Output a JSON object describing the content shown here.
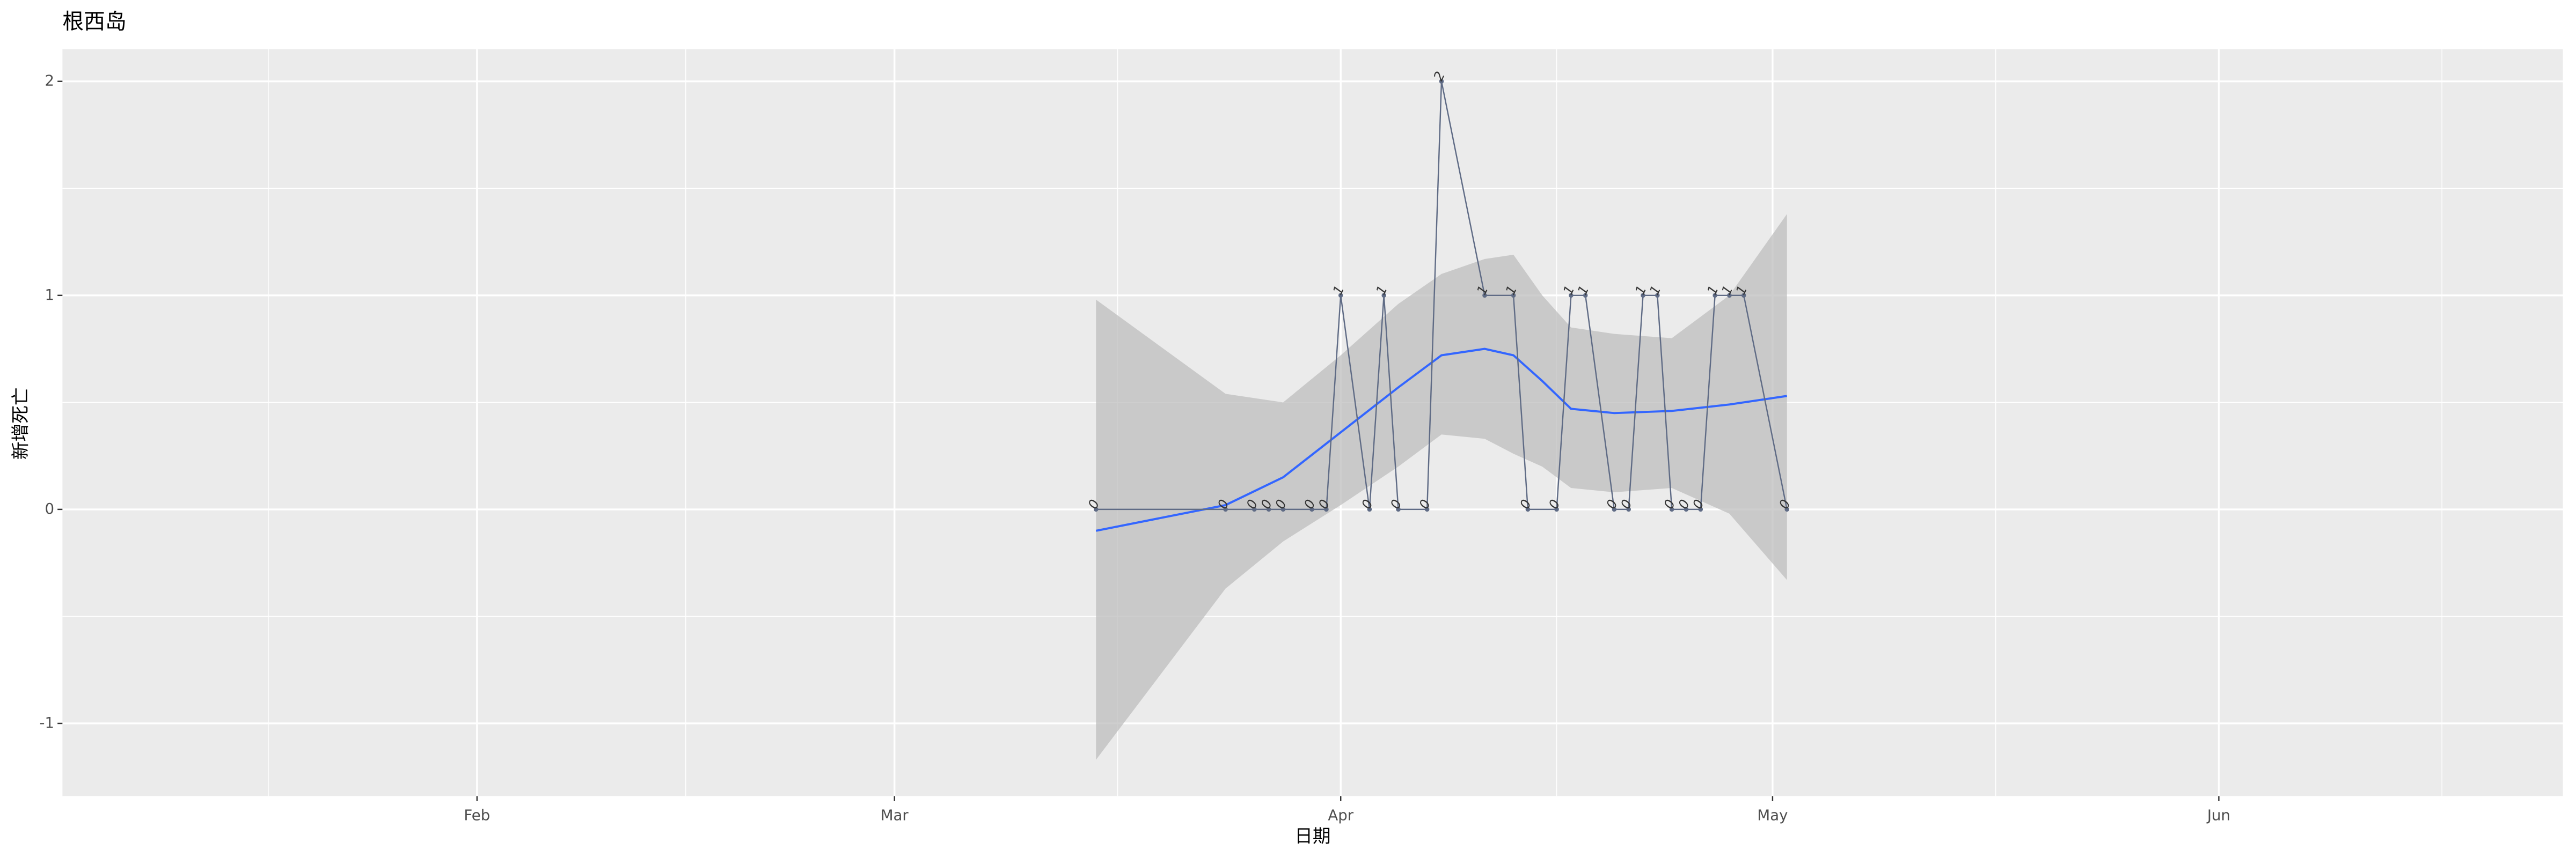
{
  "chart_data": {
    "type": "line",
    "title": "根西岛",
    "x_label": "日期",
    "y_label": "新增死亡",
    "x": [
      75,
      84,
      86,
      87,
      88,
      90,
      91,
      92,
      94,
      95,
      96,
      98,
      99,
      102,
      104,
      105,
      107,
      108,
      109,
      111,
      112,
      113,
      114,
      115,
      116,
      117,
      118,
      119,
      120,
      123
    ],
    "values": [
      0,
      0,
      0,
      0,
      0,
      0,
      0,
      1,
      0,
      1,
      0,
      0,
      2,
      1,
      1,
      0,
      0,
      1,
      1,
      0,
      0,
      1,
      1,
      0,
      0,
      0,
      1,
      1,
      1,
      0
    ],
    "color": "#5f6b85",
    "smooth": {
      "color": "#3366ff",
      "fill": "#bdbdbd",
      "x": [
        75,
        84,
        88,
        92,
        96,
        99,
        102,
        104,
        106,
        108,
        111,
        115,
        119,
        123
      ],
      "y": [
        -0.1,
        0.02,
        0.15,
        0.36,
        0.57,
        0.72,
        0.75,
        0.72,
        0.6,
        0.47,
        0.45,
        0.46,
        0.49,
        0.53
      ],
      "ymin": [
        -1.17,
        -0.37,
        -0.15,
        0.02,
        0.2,
        0.35,
        0.33,
        0.26,
        0.2,
        0.1,
        0.08,
        0.1,
        -0.02,
        -0.33
      ],
      "ymax": [
        0.98,
        0.54,
        0.5,
        0.72,
        0.96,
        1.1,
        1.17,
        1.19,
        1.0,
        0.85,
        0.82,
        0.8,
        1.0,
        1.38
      ]
    },
    "xlim": [
      3.2,
      176.9
    ],
    "xticks": [
      {
        "value": 32,
        "label": "Feb"
      },
      {
        "value": 61,
        "label": "Mar"
      },
      {
        "value": 92,
        "label": "Apr"
      },
      {
        "value": 122,
        "label": "May"
      },
      {
        "value": 153,
        "label": "Jun"
      }
    ],
    "ylim": [
      -1.34,
      2.15
    ],
    "yticks": [
      -1,
      0,
      1,
      2
    ],
    "grid": true
  }
}
